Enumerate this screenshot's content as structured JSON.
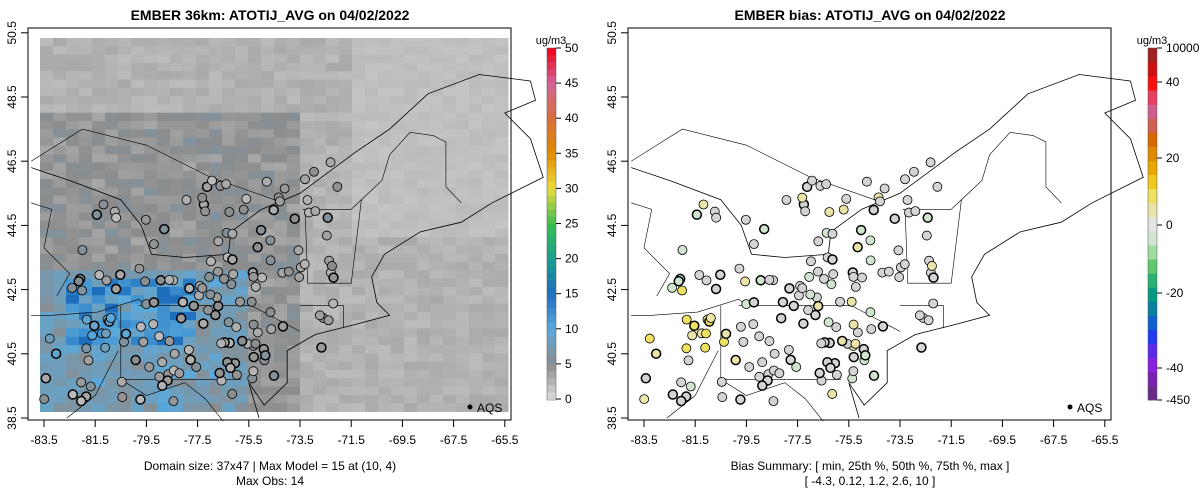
{
  "chart_data": [
    {
      "type": "heatmap",
      "title": "EMBER 36km: ATOTIJ_AVG on 04/02/2022",
      "x_ticks": [
        "-83.5",
        "-81.5",
        "-79.5",
        "-77.5",
        "-75.5",
        "-73.5",
        "-71.5",
        "-69.5",
        "-67.5",
        "-65.5"
      ],
      "y_ticks": [
        "38.5",
        "40.5",
        "42.5",
        "44.5",
        "46.5",
        "48.5",
        "50.5"
      ],
      "xlim": [
        -84.1,
        -65.3
      ],
      "ylim": [
        38.4,
        50.6
      ],
      "colorbar": {
        "unit": "ug/m3",
        "ticks": [
          "0",
          "5",
          "10",
          "15",
          "20",
          "25",
          "30",
          "35",
          "40",
          "45",
          "50"
        ],
        "range": [
          0,
          50
        ]
      },
      "legend": {
        "label": "AQS",
        "placement": "bottom-right"
      },
      "footer": [
        "Domain size: 37x47 | Max Model = 15 at (10, 4)",
        "Max Obs: 14"
      ]
    },
    {
      "type": "scatter",
      "title": "EMBER bias: ATOTIJ_AVG on 04/02/2022",
      "x_ticks": [
        "-83.5",
        "-81.5",
        "-79.5",
        "-77.5",
        "-75.5",
        "-73.5",
        "-71.5",
        "-69.5",
        "-67.5",
        "-65.5"
      ],
      "y_ticks": [
        "38.5",
        "40.5",
        "42.5",
        "44.5",
        "46.5",
        "48.5",
        "50.5"
      ],
      "xlim": [
        -84.1,
        -65.3
      ],
      "ylim": [
        38.4,
        50.6
      ],
      "colorbar": {
        "unit": "ug/m3",
        "ticks": [
          "10000",
          "40",
          "20",
          "0",
          "-20",
          "-40",
          "-450"
        ]
      },
      "legend": {
        "label": "AQS",
        "placement": "bottom-right"
      },
      "footer": [
        "Bias Summary: [ min, 25th %, 50th %, 75th %, max ]",
        "[ -4.3,   0.12,   1.2,   2.6,   10 ]"
      ],
      "bias_summary": {
        "min": -4.3,
        "p25": 0.12,
        "p50": 1.2,
        "p75": 2.6,
        "max": 10
      }
    }
  ]
}
